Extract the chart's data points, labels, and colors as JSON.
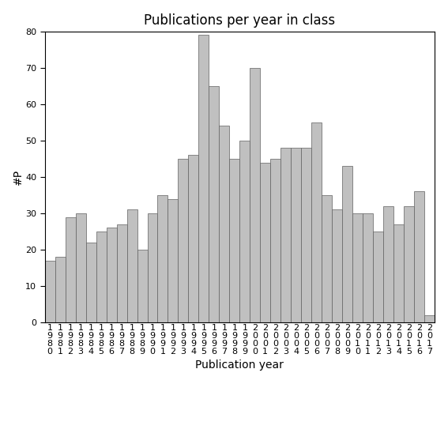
{
  "title": "Publications per year in class",
  "xlabel": "Publication year",
  "ylabel": "#P",
  "years": [
    "1980",
    "1981",
    "1982",
    "1983",
    "1984",
    "1985",
    "1986",
    "1987",
    "1988",
    "1989",
    "1990",
    "1991",
    "1992",
    "1993",
    "1994",
    "1995",
    "1996",
    "1997",
    "1998",
    "1999",
    "2000",
    "2001",
    "2002",
    "2003",
    "2004",
    "2005",
    "2006",
    "2007",
    "2008",
    "2009",
    "2010",
    "2011",
    "2012",
    "2013",
    "2014",
    "2015",
    "2016",
    "2017"
  ],
  "values": [
    17,
    18,
    29,
    30,
    22,
    25,
    26,
    27,
    31,
    20,
    30,
    35,
    34,
    45,
    46,
    79,
    65,
    54,
    45,
    50,
    70,
    44,
    45,
    48,
    48,
    48,
    55,
    35,
    31,
    43,
    30,
    30,
    25,
    32,
    27,
    32,
    36,
    2
  ],
  "bar_color": "#c0c0c0",
  "bar_edgecolor": "#606060",
  "ylim": [
    0,
    80
  ],
  "yticks": [
    0,
    10,
    20,
    30,
    40,
    50,
    60,
    70,
    80
  ],
  "background_color": "#ffffff",
  "title_fontsize": 12,
  "label_fontsize": 10,
  "tick_fontsize": 8
}
